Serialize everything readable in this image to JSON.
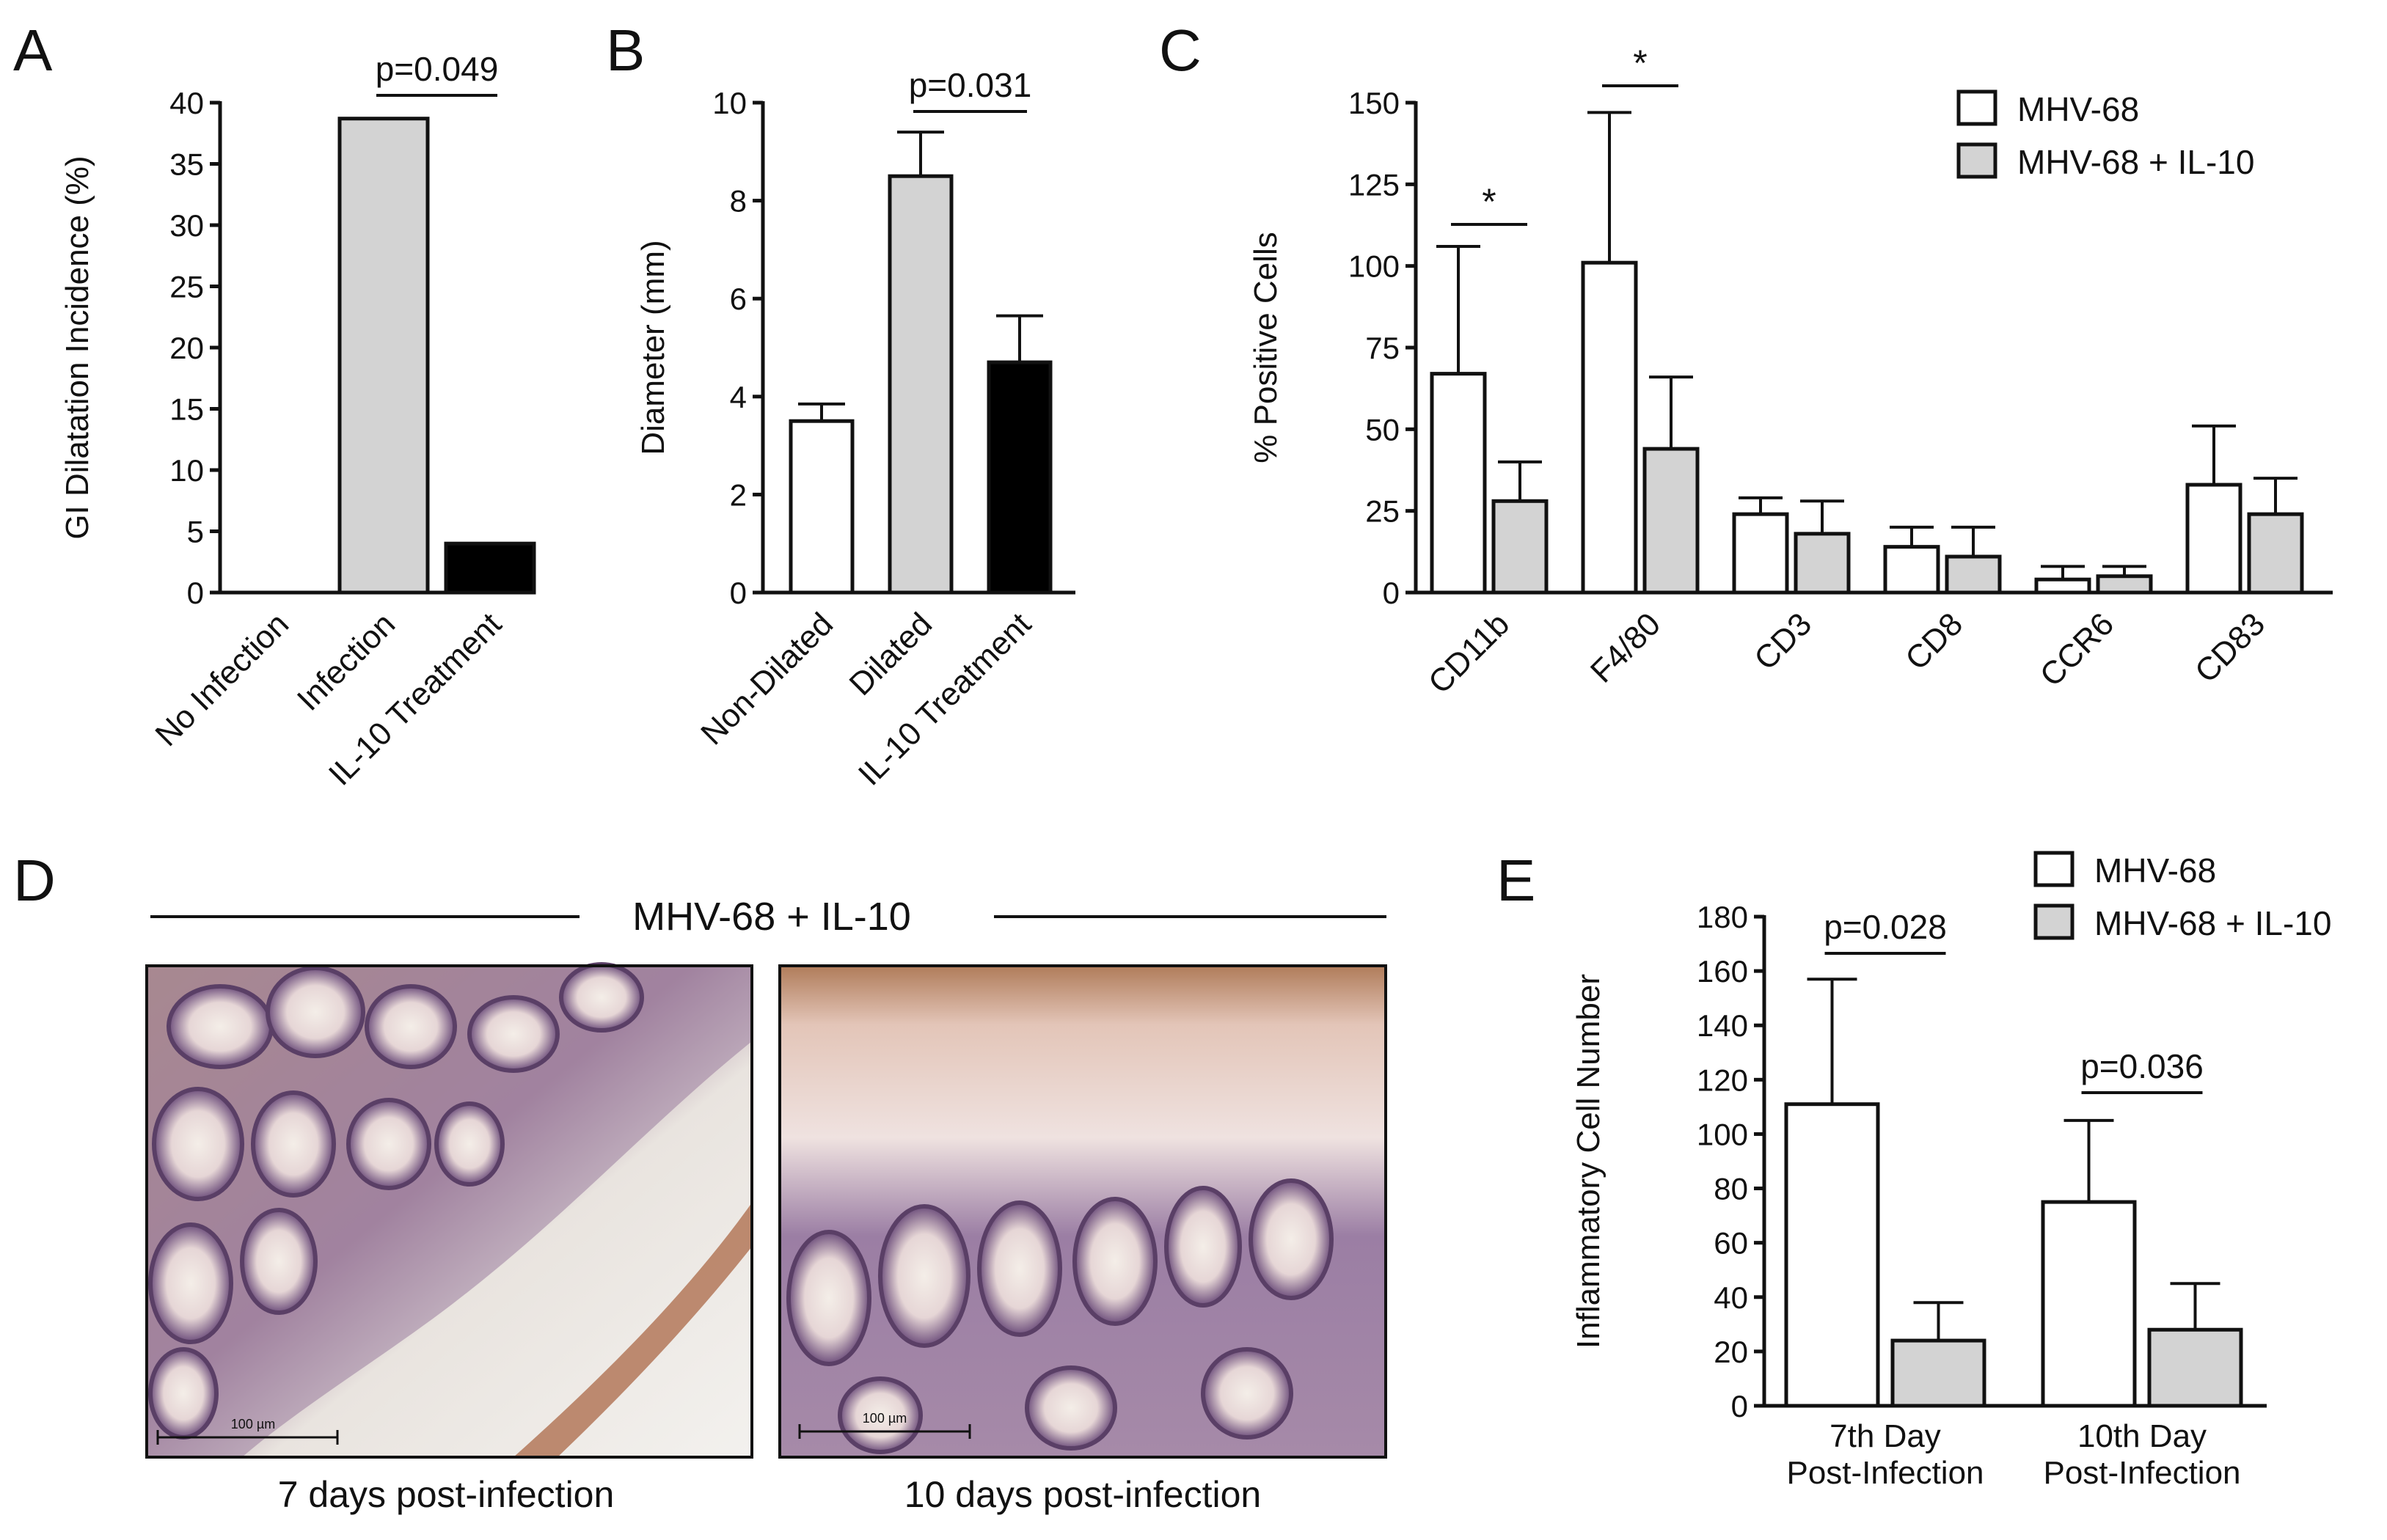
{
  "chart_data": [
    {
      "panel": "A",
      "type": "bar",
      "ylabel": "GI Dilatation Incidence (%)",
      "ylim": [
        0,
        40
      ],
      "yticks": [
        0,
        5,
        10,
        15,
        20,
        25,
        30,
        35,
        40
      ],
      "categories": [
        "No Infection",
        "Infection",
        "IL-10 Treatment"
      ],
      "values": [
        0,
        38.7,
        4
      ],
      "colors": [
        "#ffffff",
        "#d3d3d3",
        "#000000"
      ],
      "annotations": [
        {
          "text": "p=0.049",
          "between": [
            1,
            2
          ]
        }
      ]
    },
    {
      "panel": "B",
      "type": "bar",
      "ylabel": "Diameter (mm)",
      "ylim": [
        0,
        10
      ],
      "yticks": [
        0,
        2,
        4,
        6,
        8,
        10
      ],
      "categories": [
        "Non-Dilated",
        "Dilated",
        "IL-10 Treatment"
      ],
      "values": [
        3.5,
        8.5,
        4.7
      ],
      "errors": [
        0.35,
        0.9,
        0.95
      ],
      "colors": [
        "#ffffff",
        "#d3d3d3",
        "#000000"
      ],
      "annotations": [
        {
          "text": "p=0.031",
          "between": [
            1,
            2
          ]
        }
      ]
    },
    {
      "panel": "C",
      "type": "bar",
      "ylabel": "% Positive Cells",
      "ylim": [
        0,
        150
      ],
      "yticks": [
        0,
        25,
        50,
        75,
        100,
        125,
        150
      ],
      "categories": [
        "CD11b",
        "F4/80",
        "CD3",
        "CD8",
        "CCR6",
        "CD83"
      ],
      "series": [
        {
          "name": "MHV-68",
          "values": [
            67,
            101,
            24,
            14,
            4,
            33
          ],
          "errors": [
            39,
            46,
            5,
            6,
            4,
            18
          ],
          "color": "#ffffff"
        },
        {
          "name": "MHV-68 + IL-10",
          "values": [
            28,
            44,
            18,
            11,
            5,
            24
          ],
          "errors": [
            12,
            22,
            10,
            9,
            3,
            11
          ],
          "color": "#d3d3d3"
        }
      ],
      "annotations": [
        {
          "text": "*",
          "category": 0
        },
        {
          "text": "*",
          "category": 1
        }
      ],
      "legend": "top-right"
    },
    {
      "panel": "E",
      "type": "bar",
      "ylabel": "Inflammatory Cell Number",
      "ylim": [
        0,
        180
      ],
      "yticks": [
        0,
        20,
        40,
        60,
        80,
        100,
        120,
        140,
        160,
        180
      ],
      "categories": [
        [
          "7th Day",
          "Post-Infection"
        ],
        [
          "10th Day",
          "Post-Infection"
        ]
      ],
      "series": [
        {
          "name": "MHV-68",
          "values": [
            111,
            75
          ],
          "errors": [
            46,
            30
          ],
          "color": "#ffffff"
        },
        {
          "name": "MHV-68 + IL-10",
          "values": [
            24,
            28
          ],
          "errors": [
            14,
            17
          ],
          "color": "#d3d3d3"
        }
      ],
      "annotations": [
        {
          "text": "p=0.028",
          "category": 0
        },
        {
          "text": "p=0.036",
          "category": 1
        }
      ],
      "legend": "top-right"
    }
  ],
  "panel_d": {
    "letter": "D",
    "banner": "MHV-68 + IL-10",
    "images": [
      {
        "caption": "7 days  post-infection",
        "scale_label": "100 µm"
      },
      {
        "caption": "10 days  post-infection",
        "scale_label": "100 µm"
      }
    ]
  }
}
